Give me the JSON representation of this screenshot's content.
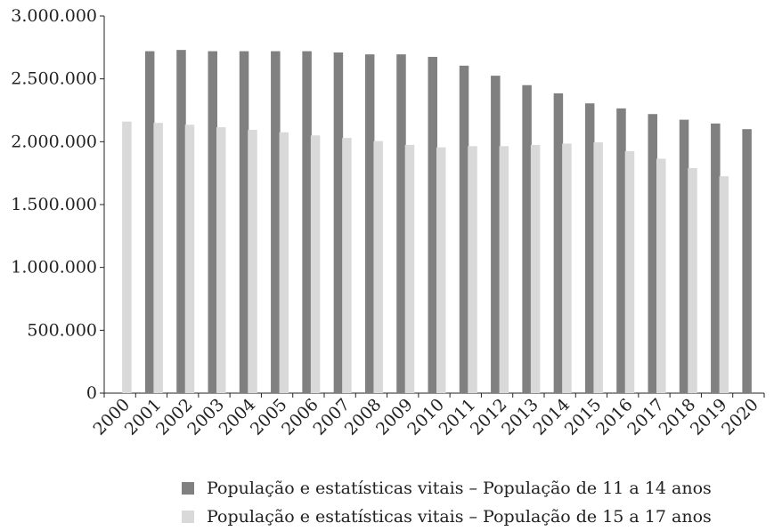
{
  "chart_data": {
    "type": "bar",
    "categories": [
      "2000",
      "2001",
      "2002",
      "2003",
      "2004",
      "2005",
      "2006",
      "2007",
      "2008",
      "2009",
      "2010",
      "2011",
      "2012",
      "2013",
      "2014",
      "2015",
      "2016",
      "2017",
      "2018",
      "2019",
      "2020"
    ],
    "series": [
      {
        "name": "População e estatísticas vitais – População de 11 a 14 anos",
        "color": "#808080",
        "values": [
          null,
          2720000,
          2730000,
          2720000,
          2720000,
          2720000,
          2720000,
          2710000,
          2695000,
          2695000,
          2675000,
          2605000,
          2525000,
          2450000,
          2385000,
          2305000,
          2265000,
          2220000,
          2175000,
          2145000,
          2100000
        ]
      },
      {
        "name": "População e estatísticas vitais – População de 15 a 17 anos",
        "color": "#d9d9d9",
        "values": [
          2160000,
          2150000,
          2135000,
          2115000,
          2095000,
          2075000,
          2050000,
          2030000,
          2005000,
          1975000,
          1955000,
          1965000,
          1965000,
          1975000,
          1985000,
          1995000,
          1925000,
          1865000,
          1790000,
          1725000,
          null
        ]
      }
    ],
    "y_ticks": [
      "0",
      "500.000",
      "1.000.000",
      "1.500.000",
      "2.000.000",
      "2.500.000",
      "3.000.000"
    ],
    "ylim": [
      0,
      3000000
    ],
    "legend_position": "bottom",
    "grid": false
  }
}
